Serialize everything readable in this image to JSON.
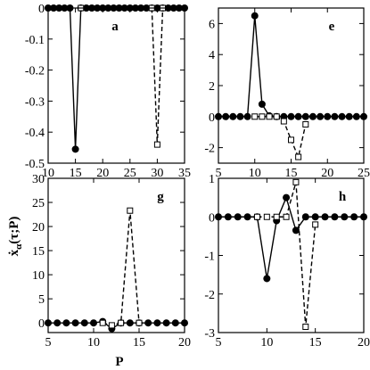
{
  "figure": {
    "xlabel": "P",
    "ylabel": "ẋ",
    "ylabel_sub": "α",
    "ylabel_args": "(τ;P)"
  },
  "chart_data": [
    {
      "panel": "a",
      "type": "line",
      "xlim": [
        10,
        35
      ],
      "ylim": [
        -0.5,
        0
      ],
      "xticks": [
        10,
        15,
        20,
        25,
        30,
        35
      ],
      "yticks": [
        -0.5,
        -0.4,
        -0.3,
        -0.2,
        -0.1,
        0
      ],
      "ytick_labels": [
        "-0.5",
        "-0.4",
        "-0.3",
        "-0.2",
        "-0.1",
        "0"
      ],
      "series": [
        {
          "style": "solid-filled-circle",
          "x": [
            10,
            11,
            12,
            13,
            14,
            15,
            16,
            17,
            18,
            19,
            20,
            21,
            22,
            23,
            24,
            25,
            26,
            27,
            28,
            29,
            30,
            31,
            32,
            33,
            34,
            35
          ],
          "y": [
            0,
            0,
            0,
            0,
            0,
            -0.455,
            0,
            0,
            0,
            0,
            0,
            0,
            0,
            0,
            0,
            0,
            0,
            0,
            0,
            0,
            0,
            0,
            0,
            0,
            0,
            0
          ]
        },
        {
          "style": "dashed-open-square",
          "x": [
            16,
            29,
            30,
            31
          ],
          "y": [
            0,
            0,
            -0.44,
            0
          ]
        }
      ]
    },
    {
      "panel": "e",
      "type": "line",
      "xlim": [
        5,
        25
      ],
      "ylim": [
        -3,
        7
      ],
      "xticks": [
        5,
        10,
        15,
        20,
        25
      ],
      "yticks": [
        -2,
        0,
        2,
        4,
        6
      ],
      "ytick_labels": [
        "-2",
        "0",
        "2",
        "4",
        "6"
      ],
      "series": [
        {
          "style": "solid-filled-circle",
          "x": [
            5,
            6,
            7,
            8,
            9,
            10,
            11,
            12,
            13,
            14,
            15,
            16,
            17,
            18,
            19,
            20,
            21,
            22,
            23,
            24,
            25
          ],
          "y": [
            0,
            0,
            0,
            0,
            0,
            6.5,
            0.8,
            0.05,
            0,
            0,
            0,
            0,
            0,
            0,
            0,
            0,
            0,
            0,
            0,
            0,
            0
          ]
        },
        {
          "style": "dashed-open-square",
          "x": [
            10,
            11,
            12,
            13,
            14,
            15,
            16,
            17
          ],
          "y": [
            0,
            0,
            0,
            0,
            -0.3,
            -1.5,
            -2.6,
            -0.5
          ]
        }
      ]
    },
    {
      "panel": "g",
      "type": "line",
      "xlim": [
        5,
        20
      ],
      "ylim": [
        -2,
        30
      ],
      "xticks": [
        5,
        10,
        15,
        20
      ],
      "yticks": [
        0,
        5,
        10,
        15,
        20,
        25,
        30
      ],
      "ytick_labels": [
        "0",
        "5",
        "10",
        "15",
        "20",
        "25",
        "30"
      ],
      "series": [
        {
          "style": "solid-filled-circle",
          "x": [
            5,
            6,
            7,
            8,
            9,
            10,
            11,
            12,
            13,
            14,
            15,
            16,
            17,
            18,
            19,
            20
          ],
          "y": [
            0,
            0,
            0,
            0,
            0,
            0,
            0.3,
            -1.2,
            0,
            0,
            0,
            0,
            0,
            0,
            0,
            0
          ]
        },
        {
          "style": "dashed-open-square",
          "x": [
            11,
            12,
            13,
            14,
            15
          ],
          "y": [
            0,
            -0.5,
            0,
            23.3,
            0
          ]
        }
      ]
    },
    {
      "panel": "h",
      "type": "line",
      "xlim": [
        5,
        20
      ],
      "ylim": [
        -3,
        1
      ],
      "xticks": [
        5,
        10,
        15,
        20
      ],
      "yticks": [
        -3,
        -2,
        -1,
        0,
        1
      ],
      "ytick_labels": [
        "-3",
        "-2",
        "-1",
        "0",
        "1"
      ],
      "series": [
        {
          "style": "solid-filled-circle",
          "x": [
            5,
            6,
            7,
            8,
            9,
            10,
            11,
            12,
            13,
            14,
            15,
            16,
            17,
            18,
            19,
            20
          ],
          "y": [
            0,
            0,
            0,
            0,
            0,
            -1.6,
            -0.1,
            0.5,
            -0.35,
            0,
            0,
            0,
            0,
            0,
            0,
            0
          ]
        },
        {
          "style": "dashed-open-square",
          "x": [
            9,
            10,
            11,
            12,
            13,
            14,
            15
          ],
          "y": [
            0,
            0,
            0,
            0,
            0.9,
            -2.85,
            -0.2
          ]
        }
      ]
    }
  ]
}
